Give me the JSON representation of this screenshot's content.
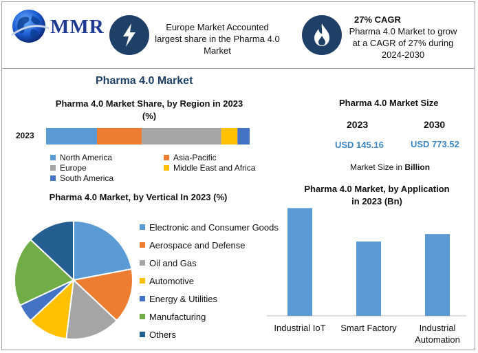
{
  "logo": {
    "text": "MMR"
  },
  "highlights": [
    {
      "icon": "lightning-icon",
      "lines": [
        "Europe Market Accounted",
        "largest share in the Pharma 4.0",
        "Market"
      ]
    },
    {
      "icon": "flame-icon",
      "title": "27% CAGR",
      "lines": [
        "Pharma 4.0 Market to grow",
        "at a CAGR of 27% during",
        "2024-2030"
      ]
    }
  ],
  "main_title": "Pharma 4.0 Market",
  "market_size": {
    "title": "Pharma 4.0 Market Size",
    "years": [
      "2023",
      "2030"
    ],
    "values": [
      "USD 145.16",
      "USD 773.52"
    ],
    "unit_prefix": "Market Size in ",
    "unit_bold": "Billion"
  },
  "colors": {
    "blue": "#5b9bd5",
    "orange": "#ed7d31",
    "gray": "#a5a5a5",
    "yellow": "#ffc000",
    "dark_blue": "#4472c4",
    "green": "#70ad47",
    "navy": "#255e91"
  },
  "chart_data": [
    {
      "type": "bar",
      "orientation": "horizontal-stacked",
      "title_lines": [
        "Pharma 4.0 Market Share, by Region in 2023",
        "(%)"
      ],
      "categories": [
        "2023"
      ],
      "series": [
        {
          "name": "North America",
          "values": [
            25
          ],
          "color": "#5b9bd5"
        },
        {
          "name": "Asia-Pacific",
          "values": [
            22
          ],
          "color": "#ed7d31"
        },
        {
          "name": "Europe",
          "values": [
            39
          ],
          "color": "#a5a5a5"
        },
        {
          "name": "Middle East and Africa",
          "values": [
            8
          ],
          "color": "#ffc000"
        },
        {
          "name": "South America",
          "values": [
            6
          ],
          "color": "#4472c4"
        }
      ],
      "xlim": [
        0,
        100
      ],
      "legend": "bottom"
    },
    {
      "type": "pie",
      "title": "Pharma 4.0 Market, by Vertical In 2023 (%)",
      "labels": [
        "Electronic and Consumer Goods",
        "Aerospace and Defense",
        "Oil and Gas",
        "Automotive",
        "Energy & Utilities",
        "Manufacturing",
        "Others"
      ],
      "values": [
        22,
        15,
        15,
        11,
        5,
        19,
        13
      ],
      "colors": [
        "#5b9bd5",
        "#ed7d31",
        "#a5a5a5",
        "#ffc000",
        "#4472c4",
        "#70ad47",
        "#255e91"
      ],
      "legend": "right"
    },
    {
      "type": "bar",
      "title_lines": [
        "Pharma 4.0 Market, by Application",
        "in 2023 (Bn)"
      ],
      "categories": [
        [
          "Industrial IoT"
        ],
        [
          "Smart Factory"
        ],
        [
          "Industrial",
          "Automation"
        ]
      ],
      "values": [
        58,
        40,
        44
      ],
      "color": "#5b9bd5",
      "ylim": [
        0,
        60
      ],
      "grid": false
    }
  ]
}
